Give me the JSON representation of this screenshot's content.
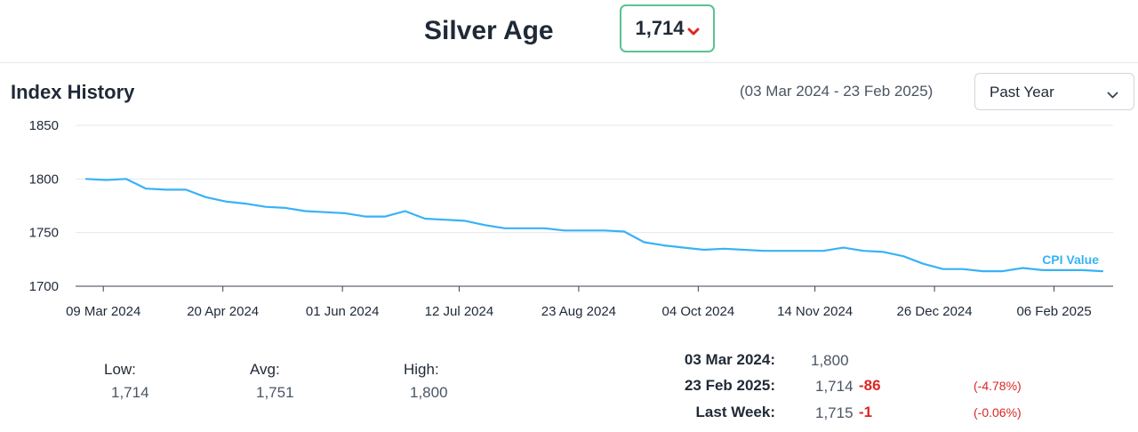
{
  "header": {
    "title": "Silver Age",
    "current_value": "1,714",
    "trend_icon": "chevron-down-icon",
    "trend_color": "#dc2626"
  },
  "history": {
    "title": "Index History",
    "date_range": "(03 Mar 2024 - 23 Feb 2025)",
    "period_select": {
      "selected": "Past Year"
    }
  },
  "chart_data": {
    "type": "line",
    "title": "",
    "xlabel": "",
    "ylabel": "",
    "ylim": [
      1700,
      1850
    ],
    "yticks": [
      1700,
      1750,
      1800,
      1850
    ],
    "xticks": [
      "09 Mar 2024",
      "20 Apr 2024",
      "01 Jun 2024",
      "12 Jul 2024",
      "23 Aug 2024",
      "04 Oct 2024",
      "14 Nov 2024",
      "26 Dec 2024",
      "06 Feb 2025"
    ],
    "grid": "horizontal",
    "line_color": "#38b2f5",
    "series": [
      {
        "name": "CPI Value",
        "x": [
          "03 Mar 2024",
          "10 Mar 2024",
          "17 Mar 2024",
          "24 Mar 2024",
          "31 Mar 2024",
          "07 Apr 2024",
          "14 Apr 2024",
          "21 Apr 2024",
          "28 Apr 2024",
          "05 May 2024",
          "12 May 2024",
          "19 May 2024",
          "26 May 2024",
          "02 Jun 2024",
          "09 Jun 2024",
          "16 Jun 2024",
          "23 Jun 2024",
          "30 Jun 2024",
          "07 Jul 2024",
          "14 Jul 2024",
          "21 Jul 2024",
          "28 Jul 2024",
          "04 Aug 2024",
          "11 Aug 2024",
          "18 Aug 2024",
          "25 Aug 2024",
          "01 Sep 2024",
          "08 Sep 2024",
          "15 Sep 2024",
          "22 Sep 2024",
          "29 Sep 2024",
          "06 Oct 2024",
          "13 Oct 2024",
          "20 Oct 2024",
          "27 Oct 2024",
          "03 Nov 2024",
          "10 Nov 2024",
          "17 Nov 2024",
          "24 Nov 2024",
          "01 Dec 2024",
          "08 Dec 2024",
          "15 Dec 2024",
          "22 Dec 2024",
          "29 Dec 2024",
          "05 Jan 2025",
          "12 Jan 2025",
          "19 Jan 2025",
          "26 Jan 2025",
          "02 Feb 2025",
          "09 Feb 2025",
          "16 Feb 2025",
          "23 Feb 2025"
        ],
        "values": [
          1800,
          1799,
          1800,
          1791,
          1790,
          1790,
          1783,
          1779,
          1777,
          1774,
          1773,
          1770,
          1769,
          1768,
          1765,
          1765,
          1770,
          1763,
          1762,
          1761,
          1757,
          1754,
          1754,
          1754,
          1752,
          1752,
          1752,
          1751,
          1741,
          1738,
          1736,
          1734,
          1735,
          1734,
          1733,
          1733,
          1733,
          1733,
          1736,
          1733,
          1732,
          1728,
          1721,
          1716,
          1716,
          1714,
          1714,
          1717,
          1715,
          1715,
          1715,
          1714
        ]
      }
    ]
  },
  "stats": {
    "low": {
      "label": "Low:",
      "value": "1,714"
    },
    "avg": {
      "label": "Avg:",
      "value": "1,751"
    },
    "high": {
      "label": "High:",
      "value": "1,800"
    }
  },
  "comparison": [
    {
      "label": "03 Mar 2024:",
      "value": "1,800",
      "diff": "",
      "pct": ""
    },
    {
      "label": "23 Feb 2025:",
      "value": "1,714",
      "diff": "-86",
      "pct": "(-4.78%)"
    },
    {
      "label": "Last Week:",
      "value": "1,715",
      "diff": "-1",
      "pct": "(-0.06%)"
    }
  ]
}
